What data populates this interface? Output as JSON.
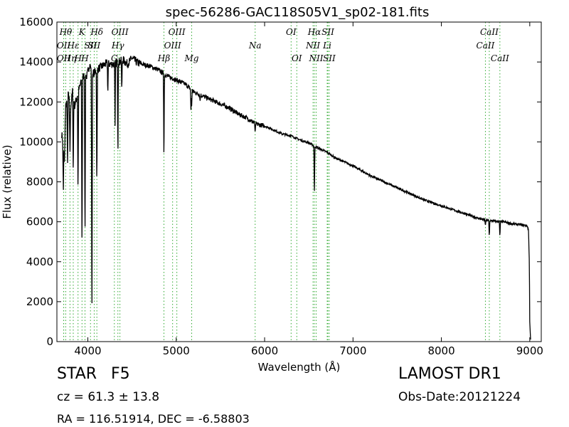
{
  "chart_data": {
    "type": "line",
    "title": "spec-56286-GAC118S05V1_sp02-181.fits",
    "xlabel": "Wavelength (Å)",
    "ylabel": "Flux (relative)",
    "xlim": [
      3650,
      9130
    ],
    "ylim": [
      0,
      16000
    ],
    "xticks": [
      4000,
      5000,
      6000,
      7000,
      8000,
      9000
    ],
    "yticks": [
      0,
      2000,
      4000,
      6000,
      8000,
      10000,
      12000,
      14000,
      16000
    ],
    "grid": false,
    "line_color": "#000000",
    "marker_color": "#33aa33",
    "continuum": [
      [
        3705,
        10400
      ],
      [
        3730,
        9600
      ],
      [
        3750,
        11800
      ],
      [
        3780,
        12400
      ],
      [
        3800,
        11600
      ],
      [
        3830,
        12600
      ],
      [
        3850,
        11800
      ],
      [
        3880,
        12300
      ],
      [
        3910,
        12800
      ],
      [
        3950,
        13300
      ],
      [
        3990,
        13300
      ],
      [
        4020,
        13900
      ],
      [
        4050,
        13400
      ],
      [
        4080,
        13500
      ],
      [
        4130,
        13700
      ],
      [
        4200,
        13900
      ],
      [
        4300,
        13900
      ],
      [
        4400,
        14100
      ],
      [
        4450,
        13900
      ],
      [
        4500,
        14200
      ],
      [
        4550,
        14000
      ],
      [
        4600,
        13900
      ],
      [
        4700,
        13800
      ],
      [
        4800,
        13600
      ],
      [
        4860,
        13400
      ],
      [
        4900,
        13300
      ],
      [
        5000,
        13100
      ],
      [
        5100,
        12900
      ],
      [
        5200,
        12500
      ],
      [
        5300,
        12300
      ],
      [
        5400,
        12100
      ],
      [
        5500,
        11900
      ],
      [
        5600,
        11700
      ],
      [
        5700,
        11400
      ],
      [
        5800,
        11200
      ],
      [
        5900,
        10900
      ],
      [
        6000,
        10800
      ],
      [
        6100,
        10600
      ],
      [
        6200,
        10400
      ],
      [
        6300,
        10300
      ],
      [
        6400,
        10100
      ],
      [
        6500,
        9950
      ],
      [
        6560,
        9800
      ],
      [
        6600,
        9700
      ],
      [
        6700,
        9500
      ],
      [
        6800,
        9200
      ],
      [
        6900,
        9000
      ],
      [
        7000,
        8800
      ],
      [
        7100,
        8550
      ],
      [
        7200,
        8300
      ],
      [
        7300,
        8100
      ],
      [
        7400,
        7900
      ],
      [
        7500,
        7700
      ],
      [
        7600,
        7500
      ],
      [
        7700,
        7300
      ],
      [
        7800,
        7100
      ],
      [
        7900,
        6950
      ],
      [
        8000,
        6800
      ],
      [
        8100,
        6650
      ],
      [
        8200,
        6500
      ],
      [
        8300,
        6350
      ],
      [
        8400,
        6200
      ],
      [
        8480,
        6100
      ],
      [
        8550,
        6050
      ],
      [
        8700,
        6000
      ],
      [
        8800,
        5900
      ],
      [
        8900,
        5850
      ],
      [
        8970,
        5800
      ],
      [
        8985,
        5600
      ],
      [
        8995,
        4000
      ],
      [
        9000,
        1000
      ],
      [
        9010,
        0
      ]
    ],
    "absorption_lines": [
      [
        3723,
        7600
      ],
      [
        3735,
        9000
      ],
      [
        3770,
        8400
      ],
      [
        3798,
        9500
      ],
      [
        3835,
        8100
      ],
      [
        3889,
        7100
      ],
      [
        3934,
        3900
      ],
      [
        3968,
        4500
      ],
      [
        4046,
        0
      ],
      [
        4102,
        7400
      ],
      [
        4226,
        12300
      ],
      [
        4308,
        10800
      ],
      [
        4340,
        8800
      ],
      [
        4384,
        12500
      ],
      [
        4861,
        8700
      ],
      [
        5167,
        11400
      ],
      [
        5175,
        11800
      ],
      [
        5270,
        12000
      ],
      [
        5893,
        10450
      ],
      [
        6563,
        7100
      ],
      [
        8498,
        5800
      ],
      [
        8542,
        5200
      ],
      [
        8662,
        5200
      ]
    ],
    "lines": [
      {
        "wl": 3727,
        "label": "OII",
        "row": 1
      },
      {
        "wl": 3727,
        "label": "OII",
        "row": 2
      },
      {
        "wl": 3750,
        "label": "Hθ",
        "row": 0
      },
      {
        "wl": 3798,
        "label": "Hη",
        "row": 2
      },
      {
        "wl": 3835,
        "label": "Hε",
        "row": 1
      },
      {
        "wl": 3889,
        "label": "H",
        "row": 2
      },
      {
        "wl": 3934,
        "label": "K",
        "row": 0
      },
      {
        "wl": 3968,
        "label": "H",
        "row": 2
      },
      {
        "wl": 4030,
        "label": "SII",
        "row": 1
      },
      {
        "wl": 4072,
        "label": "SII",
        "row": 1
      },
      {
        "wl": 4102,
        "label": "Hδ",
        "row": 0
      },
      {
        "wl": 4300,
        "label": "G",
        "row": 2
      },
      {
        "wl": 4340,
        "label": "Hγ",
        "row": 1
      },
      {
        "wl": 4363,
        "label": "OIII",
        "row": 0
      },
      {
        "wl": 4861,
        "label": "Hβ",
        "row": 2
      },
      {
        "wl": 4959,
        "label": "OIII",
        "row": 1
      },
      {
        "wl": 5007,
        "label": "OIII",
        "row": 0
      },
      {
        "wl": 5175,
        "label": "Mg",
        "row": 2
      },
      {
        "wl": 5893,
        "label": "Na",
        "row": 1
      },
      {
        "wl": 6300,
        "label": "OI",
        "row": 0
      },
      {
        "wl": 6364,
        "label": "OI",
        "row": 2
      },
      {
        "wl": 6548,
        "label": "NII",
        "row": 1
      },
      {
        "wl": 6563,
        "label": "Hα",
        "row": 0
      },
      {
        "wl": 6583,
        "label": "NII",
        "row": 2
      },
      {
        "wl": 6708,
        "label": "Li",
        "row": 1
      },
      {
        "wl": 6716,
        "label": "SII",
        "row": 0
      },
      {
        "wl": 6731,
        "label": "SII",
        "row": 2
      },
      {
        "wl": 8498,
        "label": "CaII",
        "row": 1
      },
      {
        "wl": 8542,
        "label": "CaII",
        "row": 0
      },
      {
        "wl": 8662,
        "label": "CaII",
        "row": 2
      }
    ]
  },
  "info": {
    "class_label": "STAR",
    "subclass": "F5",
    "cz": "cz = 61.3 ± 13.8",
    "radec": "RA = 116.51914, DEC = -6.58803",
    "survey": "LAMOST DR1",
    "obs_date": "Obs-Date:20121224"
  }
}
